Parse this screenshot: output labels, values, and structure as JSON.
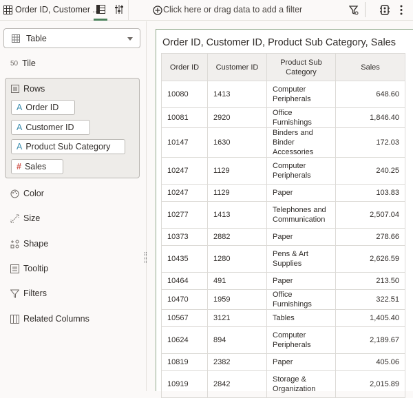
{
  "topbar": {
    "title": "Order ID, Customer ...",
    "filter_placeholder": "Click here or drag data to add a filter"
  },
  "left": {
    "viz_type": "Table",
    "tile": "Tile",
    "rows_label": "Rows",
    "row_fields": [
      {
        "type": "A",
        "label": "Order ID"
      },
      {
        "type": "A",
        "label": "Customer ID"
      },
      {
        "type": "A",
        "label": "Product Sub Category"
      },
      {
        "type": "#",
        "label": "Sales"
      }
    ],
    "color": "Color",
    "size": "Size",
    "shape": "Shape",
    "tooltip": "Tooltip",
    "filters": "Filters",
    "related": "Related Columns"
  },
  "card": {
    "title": "Order ID, Customer ID, Product Sub Category, Sales",
    "headers": [
      "Order ID",
      "Customer ID",
      "Product Sub Category",
      "Sales"
    ],
    "rows": [
      [
        "10080",
        "1413",
        "Computer Peripherals",
        "648.60"
      ],
      [
        "10081",
        "2920",
        "Office Furnishings",
        "1,846.40"
      ],
      [
        "10147",
        "1630",
        "Binders and Binder Accessories",
        "172.03"
      ],
      [
        "10247",
        "1129",
        "Computer Peripherals",
        "240.25"
      ],
      [
        "10247",
        "1129",
        "Paper",
        "103.83"
      ],
      [
        "10277",
        "1413",
        "Telephones and Communication",
        "2,507.04"
      ],
      [
        "10373",
        "2882",
        "Paper",
        "278.66"
      ],
      [
        "10435",
        "1280",
        "Pens & Art Supplies",
        "2,626.59"
      ],
      [
        "10464",
        "491",
        "Paper",
        "213.50"
      ],
      [
        "10470",
        "1959",
        "Office Furnishings",
        "322.51"
      ],
      [
        "10567",
        "3121",
        "Tables",
        "1,405.40"
      ],
      [
        "10624",
        "894",
        "Computer Peripherals",
        "2,189.67"
      ],
      [
        "10819",
        "2382",
        "Paper",
        "405.06"
      ],
      [
        "10919",
        "2842",
        "Storage & Organization",
        "2,015.89"
      ]
    ]
  },
  "colors": {
    "accent": "#4c825c",
    "attr": "#3e8fb0",
    "measure": "#d0544b"
  }
}
